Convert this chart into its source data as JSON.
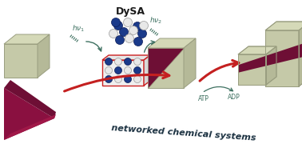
{
  "title": "DySA",
  "subtitle": "networked chemical systems",
  "title_color": "#1a1a1a",
  "subtitle_color": "#1a3040",
  "background_color": "#ffffff",
  "cube_color_face": "#c5c9a8",
  "cube_color_top": "#d5d9b8",
  "cube_color_side": "#b5b998",
  "cube_edge_color": "#9a9e80",
  "pyramid_dark": "#6e0f35",
  "pyramid_mid": "#8a1040",
  "pyramid_light": "#a01848",
  "arrow_red": "#c42020",
  "teal": "#3d7060",
  "dot_blue": "#1a3a8a",
  "dot_white": "#e8e8e8",
  "dot_edge_blue": "#0a1a55",
  "dot_edge_white": "#999999",
  "box_edge": "#cc2020",
  "box_face": "#f0f0f0"
}
